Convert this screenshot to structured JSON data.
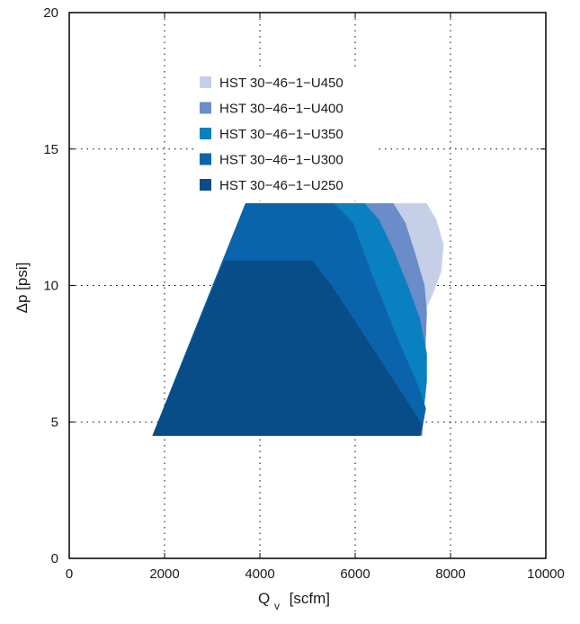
{
  "chart_data": {
    "type": "area",
    "xlabel": "Q",
    "xlabel_sub": "v",
    "xlabel_unit": "[scfm]",
    "ylabel": "Δp [psi]",
    "xlim": [
      0,
      10000
    ],
    "ylim": [
      0,
      20
    ],
    "xticks": [
      "0",
      "2000",
      "4000",
      "6000",
      "8000",
      "10000"
    ],
    "yticks": [
      "0",
      "5",
      "10",
      "15",
      "20"
    ],
    "grid": true,
    "legend_position": "top-center",
    "series": [
      {
        "name": "HST 30−46−1−U450",
        "color": "#c5cfe8",
        "points": [
          [
            1750,
            4.5
          ],
          [
            3700,
            13
          ],
          [
            7500,
            13
          ],
          [
            7700,
            12.4
          ],
          [
            7850,
            11.5
          ],
          [
            7800,
            10.5
          ],
          [
            7650,
            9.8
          ],
          [
            7500,
            9.2
          ],
          [
            7350,
            4.5
          ]
        ]
      },
      {
        "name": "HST 30−46−1−U400",
        "color": "#6a8cc8",
        "points": [
          [
            1750,
            4.5
          ],
          [
            3700,
            13
          ],
          [
            6800,
            13
          ],
          [
            7050,
            12.3
          ],
          [
            7250,
            11.2
          ],
          [
            7450,
            10
          ],
          [
            7500,
            9
          ],
          [
            7400,
            4.5
          ]
        ]
      },
      {
        "name": "HST 30−46−1−U350",
        "color": "#0b80c0",
        "points": [
          [
            1750,
            4.5
          ],
          [
            3700,
            13
          ],
          [
            6200,
            13
          ],
          [
            6500,
            12.4
          ],
          [
            6800,
            11.3
          ],
          [
            7100,
            10
          ],
          [
            7350,
            8.8
          ],
          [
            7500,
            7.5
          ],
          [
            7500,
            6.5
          ],
          [
            7380,
            4.5
          ]
        ]
      },
      {
        "name": "HST 30−46−1−U300",
        "color": "#0a64ac",
        "points": [
          [
            1750,
            4.5
          ],
          [
            3700,
            13
          ],
          [
            5550,
            13
          ],
          [
            5950,
            12.3
          ],
          [
            6350,
            10.4
          ],
          [
            6900,
            8
          ],
          [
            7300,
            6.4
          ],
          [
            7480,
            5.5
          ],
          [
            7380,
            4.5
          ]
        ]
      },
      {
        "name": "HST 30−46−1−U250",
        "color": "#084c88",
        "points": [
          [
            1750,
            4.5
          ],
          [
            3250,
            10.9
          ],
          [
            5100,
            10.9
          ],
          [
            5500,
            10
          ],
          [
            6700,
            6.8
          ],
          [
            7400,
            4.9
          ],
          [
            7350,
            4.5
          ]
        ]
      }
    ]
  }
}
